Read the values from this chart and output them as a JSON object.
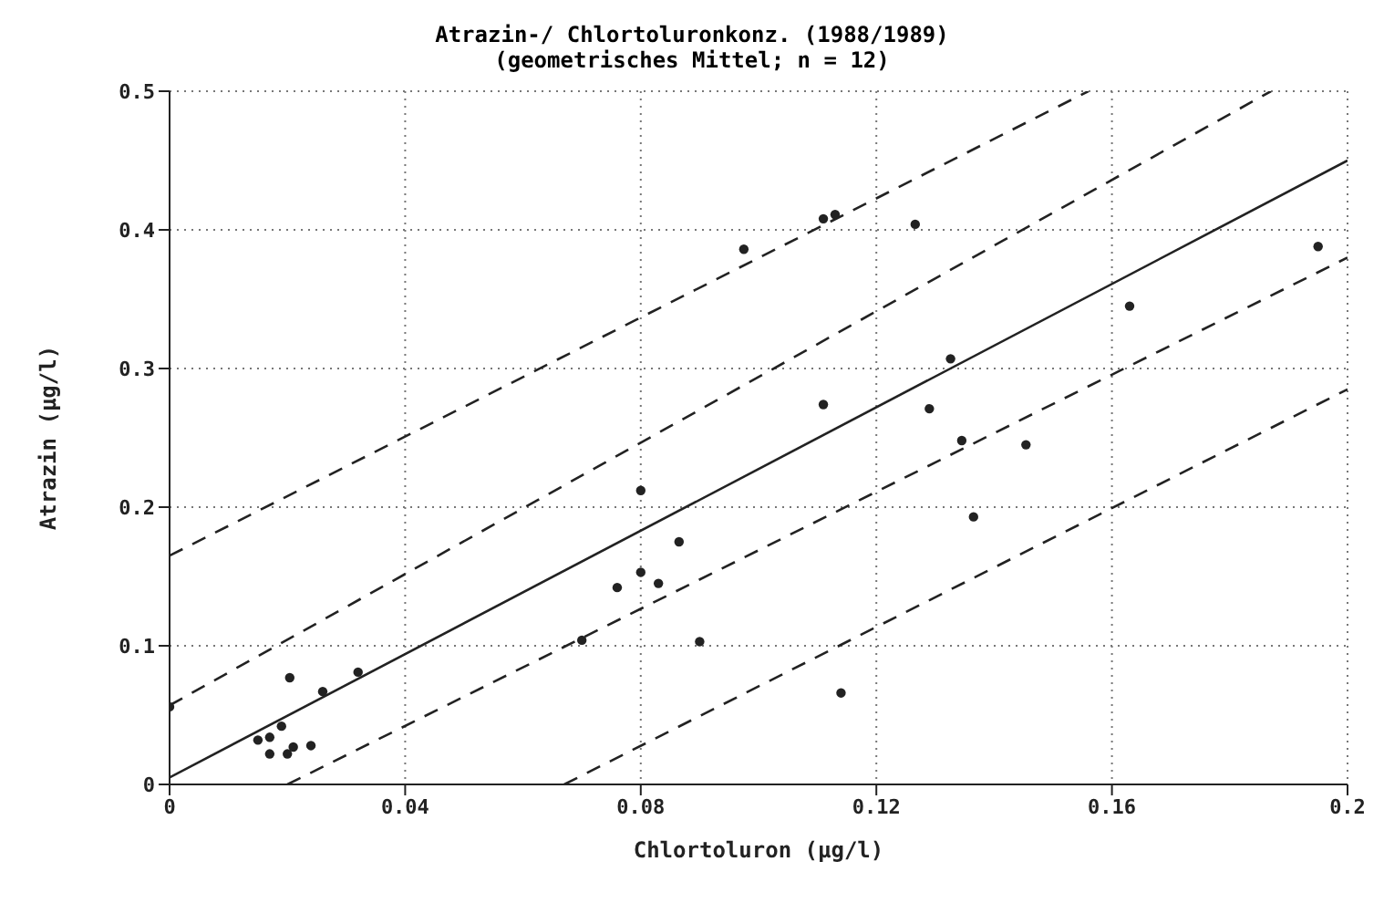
{
  "chart_data": {
    "type": "scatter",
    "title": "Atrazin-/ Chlortoluronkonz. (1988/1989)",
    "subtitle": "(geometrisches Mittel; n = 12)",
    "xlabel": "Chlortoluron (µg/l)",
    "ylabel": "Atrazin (µg/l)",
    "xlim": [
      0,
      0.2
    ],
    "xticks": [
      0,
      0.04,
      0.08,
      0.12,
      0.16,
      0.2
    ],
    "ylim": [
      0,
      0.5
    ],
    "yticks": [
      0,
      0.1,
      0.2,
      0.3,
      0.4,
      0.5
    ],
    "grid": true,
    "series": [
      {
        "color": "#222222",
        "marker": "circle",
        "x": [
          0.0,
          0.0204,
          0.026,
          0.032,
          0.019,
          0.015,
          0.017,
          0.017,
          0.02,
          0.021,
          0.024,
          0.07,
          0.076,
          0.08,
          0.08,
          0.083,
          0.0865,
          0.09,
          0.0975,
          0.111,
          0.113,
          0.1266,
          0.111,
          0.1326,
          0.129,
          0.1345,
          0.1365,
          0.114,
          0.1454,
          0.163,
          0.195
        ],
        "values": [
          0.056,
          0.077,
          0.067,
          0.081,
          0.042,
          0.032,
          0.034,
          0.022,
          0.022,
          0.027,
          0.028,
          0.104,
          0.142,
          0.212,
          0.153,
          0.145,
          0.175,
          0.103,
          0.386,
          0.408,
          0.411,
          0.404,
          0.274,
          0.307,
          0.271,
          0.248,
          0.193,
          0.066,
          0.245,
          0.345,
          0.388
        ]
      },
      {
        "type": "line",
        "color": "#222222",
        "line_style": "solid",
        "marker": "none",
        "x": [
          0,
          0.2
        ],
        "values": [
          0.005,
          0.45
        ]
      },
      {
        "type": "line",
        "color": "#222222",
        "line_style": "dashed",
        "marker": "none",
        "x": [
          0,
          0.187
        ],
        "values": [
          0.057,
          0.5
        ]
      },
      {
        "type": "line",
        "color": "#222222",
        "line_style": "dashed",
        "marker": "none",
        "x": [
          0.02,
          0.2
        ],
        "values": [
          0.0,
          0.38
        ]
      },
      {
        "type": "line",
        "color": "#222222",
        "line_style": "dashed",
        "marker": "none",
        "x": [
          0,
          0.156
        ],
        "values": [
          0.165,
          0.5
        ]
      },
      {
        "type": "line",
        "color": "#222222",
        "line_style": "dashed",
        "marker": "none",
        "x": [
          0.067,
          0.2
        ],
        "values": [
          0.0,
          0.285
        ]
      }
    ]
  }
}
